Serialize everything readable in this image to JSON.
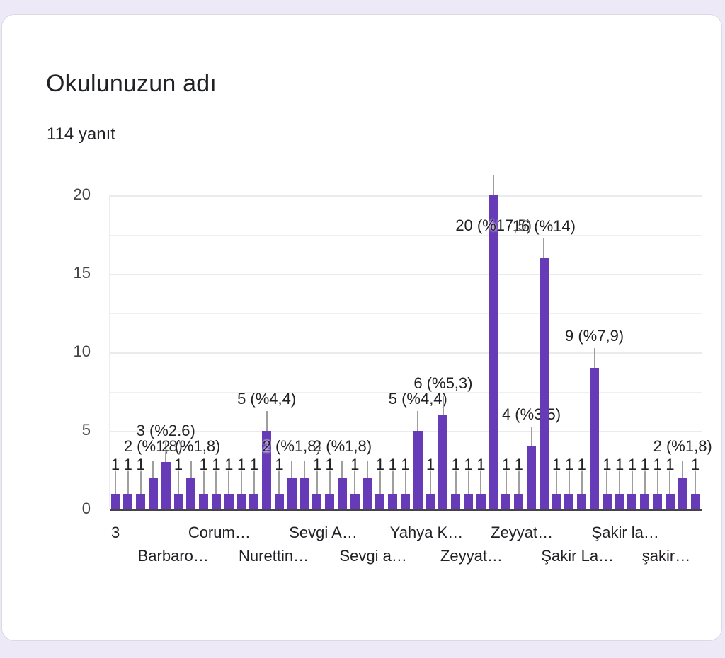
{
  "card": {
    "title": "Okulunuzun adı",
    "response_count": "114 yanıt"
  },
  "colors": {
    "bar": "#673ab7",
    "background": "#ede9f7",
    "card": "#ffffff"
  },
  "chart_data": {
    "type": "bar",
    "title": "Okulunuzun adı",
    "subtitle": "114 yanıt",
    "xlabel": "",
    "ylabel": "",
    "ylim": [
      0,
      20
    ],
    "yticks": [
      0,
      5,
      10,
      15,
      20
    ],
    "grid": true,
    "legend": "none",
    "visible_x_tick_labels": [
      {
        "index": 0,
        "label": "3"
      },
      {
        "index": 2,
        "label": "Barbaro…"
      },
      {
        "index": 6,
        "label": "Corum…"
      },
      {
        "index": 10,
        "label": "Nurettin…"
      },
      {
        "index": 14,
        "label": "Sevgi A…"
      },
      {
        "index": 18,
        "label": "Sevgi a…"
      },
      {
        "index": 22,
        "label": "Yahya K…"
      },
      {
        "index": 26,
        "label": "Zeyyat…"
      },
      {
        "index": 30,
        "label": "Zeyyat…"
      },
      {
        "index": 34,
        "label": "Şakir La…"
      },
      {
        "index": 38,
        "label": "Şakir la…"
      },
      {
        "index": 42,
        "label": "şakir…"
      }
    ],
    "values": [
      1,
      1,
      1,
      2,
      3,
      1,
      2,
      1,
      1,
      1,
      1,
      1,
      5,
      1,
      2,
      2,
      1,
      1,
      2,
      1,
      2,
      1,
      1,
      1,
      5,
      1,
      6,
      1,
      1,
      1,
      20,
      1,
      1,
      4,
      16,
      1,
      1,
      1,
      9,
      1,
      1,
      1,
      1,
      1,
      1,
      2,
      1
    ],
    "visible_data_labels": [
      {
        "index": 0,
        "text": "1"
      },
      {
        "index": 3,
        "text": "2 (%1,8)"
      },
      {
        "index": 4,
        "text": "3 (%2.6)"
      },
      {
        "index": 6,
        "text": "2 (%1,8)"
      },
      {
        "index": 12,
        "text": "5 (%4,4)"
      },
      {
        "index": 14,
        "text": "2 (%1,8)"
      },
      {
        "index": 18,
        "text": "2 (%1,8)"
      },
      {
        "index": 24,
        "text": "5 (%4,4)"
      },
      {
        "index": 26,
        "text": "6 (%5,3)"
      },
      {
        "index": 30,
        "text": "20 (%17,5)"
      },
      {
        "index": 33,
        "text": "4 (%3,5)"
      },
      {
        "index": 34,
        "text": "16 (%14)"
      },
      {
        "index": 38,
        "text": "9 (%7,9)"
      },
      {
        "index": 45,
        "text": "2 (%1,8)"
      }
    ]
  }
}
